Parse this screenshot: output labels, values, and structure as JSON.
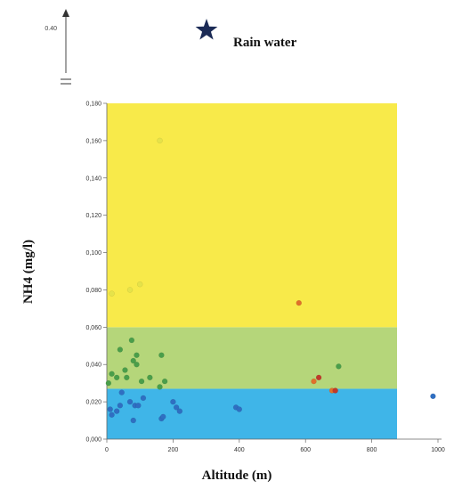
{
  "chart_data": {
    "type": "scatter",
    "xlabel": "Altitude (m)",
    "ylabel": "NH4 (mg/l)",
    "xlim": [
      0,
      1000
    ],
    "ylim": [
      0,
      0.18
    ],
    "x_ticks": [
      0,
      200,
      400,
      600,
      800,
      1000
    ],
    "x_tick_labels": [
      "0",
      "200",
      "400",
      "600",
      "800",
      "1000"
    ],
    "y_ticks": [
      0,
      0.02,
      0.04,
      0.06,
      0.08,
      0.1,
      0.12,
      0.14,
      0.16,
      0.18
    ],
    "y_tick_labels": [
      "0,000",
      "0,020",
      "0,040",
      "0,060",
      "0,080",
      "0,100",
      "0,120",
      "0,140",
      "0,160",
      "0,180"
    ],
    "grid": false,
    "bands": [
      {
        "y0": 0,
        "y1": 0.027,
        "color": "#3fb5e8"
      },
      {
        "y0": 0.027,
        "y1": 0.06,
        "color": "#b5d67a"
      },
      {
        "y0": 0.06,
        "y1": 0.18,
        "color": "#f8ea4a"
      }
    ],
    "series": [
      {
        "color": "#2f6fc2",
        "points": [
          [
            10,
            0.016
          ],
          [
            15,
            0.013
          ],
          [
            30,
            0.015
          ],
          [
            40,
            0.018
          ],
          [
            45,
            0.025
          ],
          [
            70,
            0.02
          ],
          [
            80,
            0.01
          ],
          [
            85,
            0.018
          ],
          [
            95,
            0.018
          ],
          [
            110,
            0.022
          ],
          [
            165,
            0.011
          ],
          [
            170,
            0.012
          ],
          [
            200,
            0.02
          ],
          [
            210,
            0.017
          ],
          [
            220,
            0.015
          ],
          [
            390,
            0.017
          ],
          [
            400,
            0.016
          ],
          [
            985,
            0.023
          ]
        ]
      },
      {
        "color": "#4a9e4a",
        "points": [
          [
            5,
            0.03
          ],
          [
            15,
            0.035
          ],
          [
            30,
            0.033
          ],
          [
            40,
            0.048
          ],
          [
            55,
            0.037
          ],
          [
            60,
            0.033
          ],
          [
            75,
            0.053
          ],
          [
            80,
            0.042
          ],
          [
            90,
            0.045
          ],
          [
            90,
            0.04
          ],
          [
            105,
            0.031
          ],
          [
            130,
            0.033
          ],
          [
            160,
            0.028
          ],
          [
            165,
            0.045
          ],
          [
            175,
            0.031
          ],
          [
            700,
            0.039
          ]
        ]
      },
      {
        "color": "#e6e34a",
        "points": [
          [
            15,
            0.078
          ],
          [
            70,
            0.08
          ],
          [
            100,
            0.083
          ],
          [
            160,
            0.16
          ]
        ]
      },
      {
        "color": "#e0702a",
        "points": [
          [
            580,
            0.073
          ],
          [
            625,
            0.031
          ],
          [
            680,
            0.026
          ]
        ]
      },
      {
        "color": "#c0392b",
        "points": [
          [
            640,
            0.033
          ],
          [
            690,
            0.026
          ]
        ]
      }
    ],
    "outlier_tick_label": "0.40",
    "annotation": {
      "label": "Rain water",
      "marker": "star-icon",
      "marker_color": "#1b2a55"
    }
  }
}
